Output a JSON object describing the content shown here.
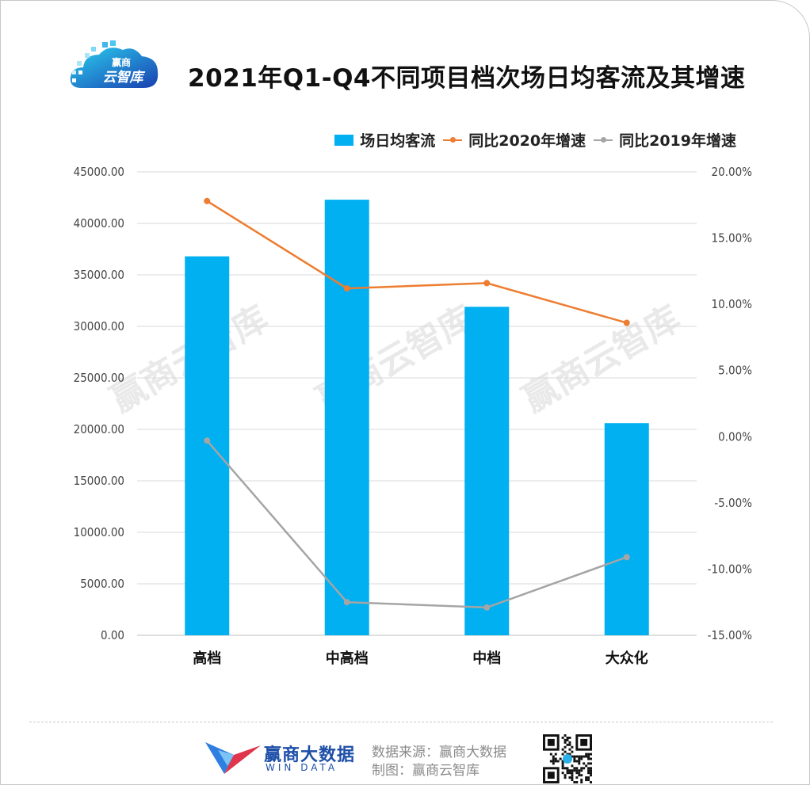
{
  "header": {
    "title": "2021年Q1-Q4不同项目档次场日均客流及其增速",
    "logo_text_top": "赢商",
    "logo_text_bottom": "云智库"
  },
  "watermark": "赢商云智库",
  "footer": {
    "brand_name": "赢商大数据",
    "brand_sub": "WIN DATA",
    "source": "数据来源：赢商大数据",
    "made_by": "制图：赢商云智库"
  },
  "colors": {
    "bar": "#00B0F0",
    "line2020": "#ED7D31",
    "line2019": "#A5A5A5"
  },
  "chart_data": {
    "type": "bar",
    "categories": [
      "高档",
      "中高档",
      "中档",
      "大众化"
    ],
    "series": [
      {
        "name": "场日均客流",
        "type": "bar",
        "axis": "left",
        "values": [
          36800,
          42300,
          31900,
          20600
        ]
      },
      {
        "name": "同比2020年增速",
        "type": "line",
        "axis": "right",
        "values": [
          17.8,
          11.2,
          11.6,
          8.6
        ]
      },
      {
        "name": "同比2019年增速",
        "type": "line",
        "axis": "right",
        "values": [
          -0.3,
          -12.5,
          -12.9,
          -9.1
        ]
      }
    ],
    "y_left": {
      "min": 0,
      "max": 45000,
      "ticks": [
        "0.00",
        "5000.00",
        "10000.00",
        "15000.00",
        "20000.00",
        "25000.00",
        "30000.00",
        "35000.00",
        "40000.00",
        "45000.00"
      ]
    },
    "y_right": {
      "min": -15,
      "max": 20,
      "ticks": [
        "-15.00%",
        "-10.00%",
        "-5.00%",
        "0.00%",
        "5.00%",
        "10.00%",
        "15.00%",
        "20.00%"
      ]
    },
    "grid": true,
    "legend_position": "top-right"
  }
}
